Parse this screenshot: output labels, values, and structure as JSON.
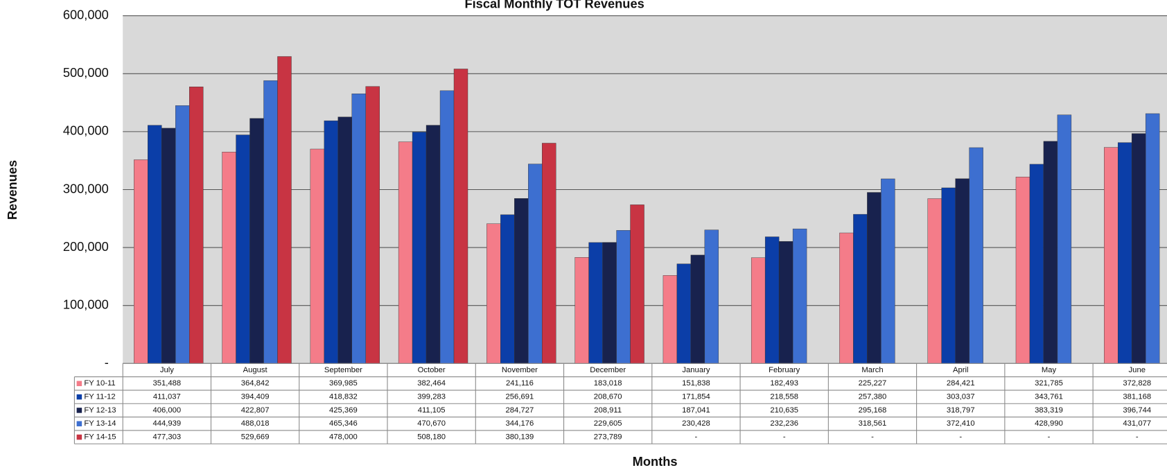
{
  "chart_data": {
    "type": "bar",
    "title": "Fiscal Monthly TOT Revenues",
    "y_label": "Revenues",
    "x_label": "Months",
    "categories": [
      "July",
      "August",
      "September",
      "October",
      "November",
      "December",
      "January",
      "February",
      "March",
      "April",
      "May",
      "June"
    ],
    "ylim": [
      0,
      600000
    ],
    "yticks": [
      {
        "value": 0,
        "label": "-"
      },
      {
        "value": 100000,
        "label": "100,000"
      },
      {
        "value": 200000,
        "label": "200,000"
      },
      {
        "value": 300000,
        "label": "300,000"
      },
      {
        "value": 400000,
        "label": "400,000"
      },
      {
        "value": 500000,
        "label": "500,000"
      },
      {
        "value": 600000,
        "label": "600,000"
      }
    ],
    "grid": true,
    "series": [
      {
        "name": "FY 10-11",
        "color": "#f47c89",
        "values": [
          351488,
          364842,
          369985,
          382464,
          241116,
          183018,
          151838,
          182493,
          225227,
          284421,
          321785,
          372828
        ],
        "value_labels": [
          "351,488",
          "364,842",
          "369,985",
          "382,464",
          "241,116",
          "183,018",
          "151,838",
          "182,493",
          "225,227",
          "284,421",
          "321,785",
          "372,828"
        ]
      },
      {
        "name": "FY 11-12",
        "color": "#0b3ea8",
        "values": [
          411037,
          394409,
          418832,
          399283,
          256691,
          208670,
          171854,
          218558,
          257380,
          303037,
          343761,
          381168
        ],
        "value_labels": [
          "411,037",
          "394,409",
          "418,832",
          "399,283",
          "256,691",
          "208,670",
          "171,854",
          "218,558",
          "257,380",
          "303,037",
          "343,761",
          "381,168"
        ]
      },
      {
        "name": "FY 12-13",
        "color": "#18224e",
        "values": [
          406000,
          422807,
          425369,
          411105,
          284727,
          208911,
          187041,
          210635,
          295168,
          318797,
          383319,
          396744
        ],
        "value_labels": [
          "406,000",
          "422,807",
          "425,369",
          "411,105",
          "284,727",
          "208,911",
          "187,041",
          "210,635",
          "295,168",
          "318,797",
          "383,319",
          "396,744"
        ]
      },
      {
        "name": "FY 13-14",
        "color": "#3d6fd0",
        "values": [
          444939,
          488018,
          465346,
          470670,
          344176,
          229605,
          230428,
          232236,
          318561,
          372410,
          428990,
          431077
        ],
        "value_labels": [
          "444,939",
          "488,018",
          "465,346",
          "470,670",
          "344,176",
          "229,605",
          "230,428",
          "232,236",
          "318,561",
          "372,410",
          "428,990",
          "431,077"
        ]
      },
      {
        "name": "FY 14-15",
        "color": "#c83443",
        "values": [
          477303,
          529669,
          478000,
          508180,
          380139,
          273789,
          null,
          null,
          null,
          null,
          null,
          null
        ],
        "value_labels": [
          "477,303",
          "529,669",
          "478,000",
          "508,180",
          "380,139",
          "273,789",
          "-",
          "-",
          "-",
          "-",
          "-",
          "-"
        ]
      }
    ]
  }
}
